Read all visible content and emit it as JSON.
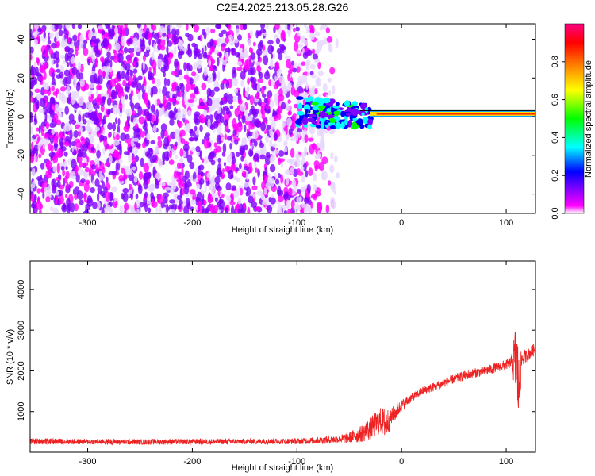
{
  "title": "C2E4.2025.213.05.28.G26",
  "chart_data": [
    {
      "type": "heatmap",
      "xlabel": "Height of straight line (km)",
      "ylabel": "Frequency (Hz)",
      "xlim": [
        -355,
        128
      ],
      "ylim": [
        -50,
        48
      ],
      "xticks": [
        -300,
        -200,
        -100,
        0,
        100
      ],
      "yticks": [
        -40,
        -20,
        0,
        20,
        40
      ],
      "colorbar": {
        "label": "Normalized spectral amplitude",
        "range": [
          0.0,
          1.0
        ],
        "ticks": [
          "0.0",
          "0.2",
          "0.4",
          "0.6",
          "0.8"
        ],
        "colors": [
          "#ffffff",
          "#ff00ff",
          "#8000ff",
          "#0000ff",
          "#00ffff",
          "#00ff00",
          "#ffff00",
          "#ff8000",
          "#ff0000",
          "#ff0080"
        ]
      },
      "features": [
        {
          "label": "broadband noise",
          "x": [
            -355,
            -60
          ],
          "y": [
            -50,
            48
          ],
          "amplitude": 0.2
        },
        {
          "label": "transition",
          "x": [
            -100,
            -30
          ],
          "y": [
            -25,
            15
          ],
          "amplitude": 0.4
        },
        {
          "label": "carrier line",
          "x": [
            -30,
            128
          ],
          "y": [
            1.5,
            1.5
          ],
          "amplitude": 0.9
        }
      ]
    },
    {
      "type": "line",
      "xlabel": "Height of straight line (km)",
      "ylabel": "SNR (10 * v/v)",
      "xlim": [
        -355,
        128
      ],
      "ylim": [
        0,
        4700
      ],
      "xticks": [
        -300,
        -200,
        -100,
        0,
        100
      ],
      "yticks": [
        1000,
        2000,
        3000,
        4000
      ],
      "color": "#ee2222",
      "series": [
        {
          "x": [
            -355,
            -300,
            -250,
            -200,
            -150,
            -100,
            -80,
            -60,
            -50,
            -40,
            -30,
            -20,
            -15,
            -10,
            -5,
            0,
            10,
            20,
            30,
            40,
            50,
            60,
            70,
            80,
            90,
            100,
            105,
            108,
            110,
            112,
            115,
            120,
            128
          ],
          "values": [
            270,
            260,
            255,
            260,
            265,
            270,
            290,
            320,
            360,
            430,
            580,
            780,
            700,
            850,
            1000,
            1150,
            1350,
            1500,
            1600,
            1700,
            1800,
            1880,
            1950,
            2000,
            2080,
            2150,
            2220,
            2250,
            2200,
            1500,
            2300,
            2380,
            2550
          ],
          "spread": [
            150,
            140,
            140,
            140,
            140,
            150,
            170,
            200,
            280,
            400,
            550,
            650,
            800,
            450,
            380,
            300,
            200,
            220,
            220,
            220,
            230,
            230,
            230,
            240,
            240,
            240,
            300,
            1500,
            2300,
            1800,
            400,
            300,
            300
          ]
        }
      ]
    }
  ]
}
